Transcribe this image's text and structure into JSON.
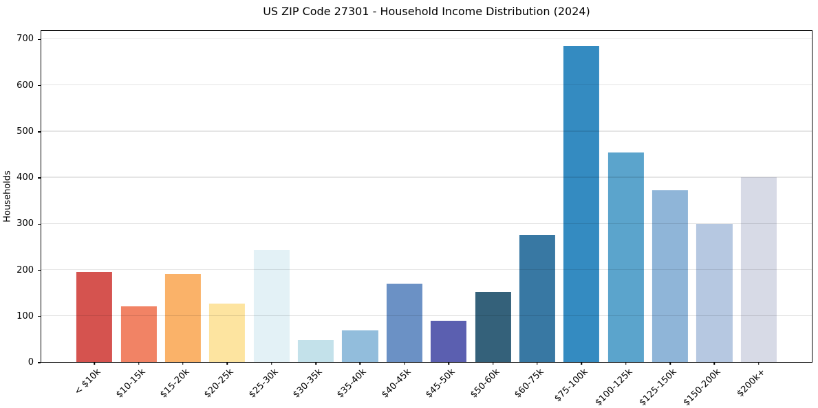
{
  "chart_data": {
    "type": "bar",
    "title": "US ZIP Code 27301 - Household Income Distribution (2024)",
    "xlabel": "",
    "ylabel": "Households",
    "ylim": [
      0,
      720
    ],
    "yticks": [
      0,
      100,
      200,
      300,
      400,
      500,
      600,
      700
    ],
    "grid": "horizontal gridlines at y ticks, drawn over bars, light gray",
    "legend": "none",
    "categories": [
      "< $10k",
      "$10-15k",
      "$15-20k",
      "$20-25k",
      "$25-30k",
      "$30-35k",
      "$35-40k",
      "$40-45k",
      "$45-50k",
      "$50-60k",
      "$60-75k",
      "$75-100k",
      "$100-125k",
      "$125-150k",
      "$150-200k",
      "$200k+"
    ],
    "values": [
      195,
      121,
      190,
      127,
      242,
      48,
      69,
      170,
      89,
      152,
      275,
      685,
      453,
      372,
      299,
      400
    ],
    "bar_colors": [
      "#d5534f",
      "#f18365",
      "#fab269",
      "#fde4a0",
      "#e3f1f6",
      "#c3e1ea",
      "#92bddc",
      "#6b91c5",
      "#5b5fb0",
      "#34617a",
      "#3878a3",
      "#348bc1",
      "#5ba4cc",
      "#8fb5d8",
      "#b6c8e1",
      "#d7dae6"
    ],
    "colors": {
      "background": "#ffffff",
      "text": "#000000",
      "frame": "#000000",
      "gridline": "rgba(0,0,0,0.10)"
    }
  }
}
